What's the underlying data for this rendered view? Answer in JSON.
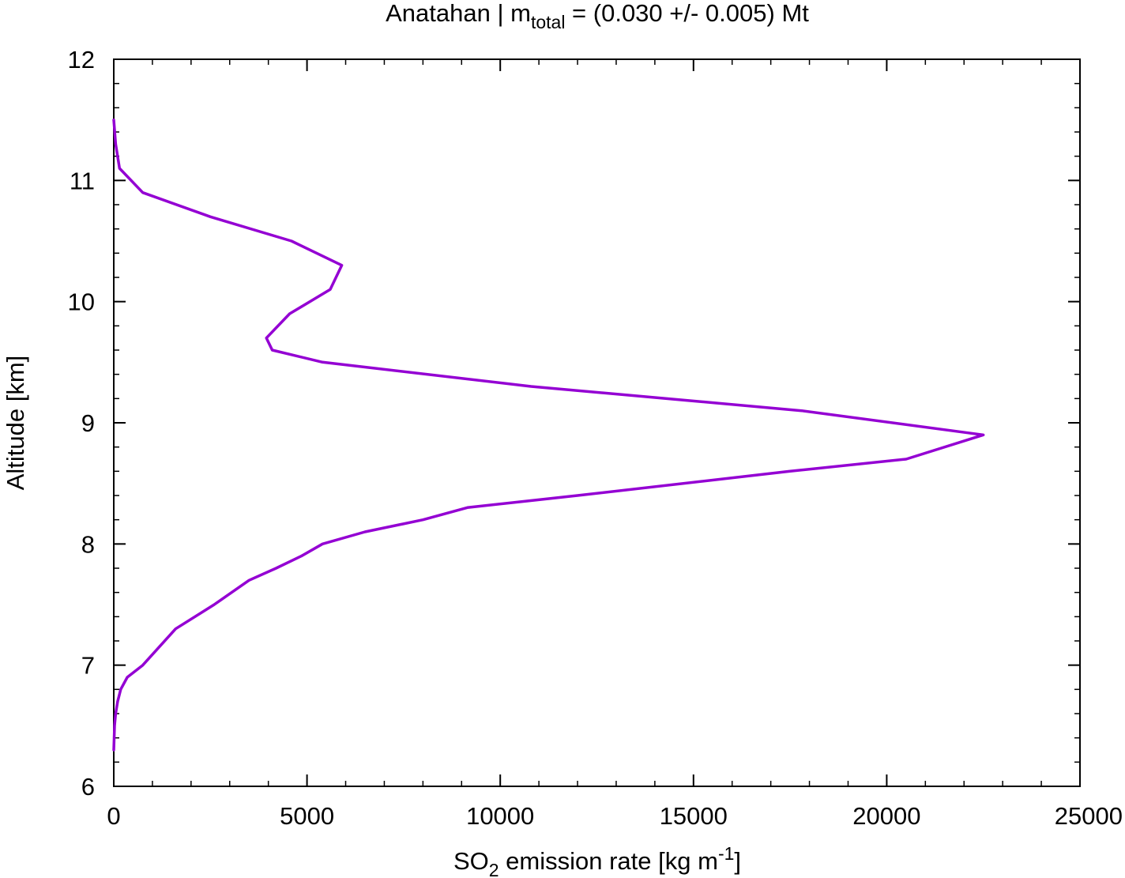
{
  "chart_data": {
    "type": "line",
    "title": {
      "prefix": "Anatahan | m",
      "subscript": "total",
      "suffix": " = (0.030 +/- 0.005) Mt"
    },
    "xlabel": {
      "prefix": "SO",
      "subscript": "2",
      "middle": " emission rate [kg m",
      "superscript": "-1",
      "suffix": "]"
    },
    "ylabel": "Altitude [km]",
    "xlim": [
      0,
      25000
    ],
    "ylim": [
      6,
      12
    ],
    "x_ticks": [
      0,
      5000,
      10000,
      15000,
      20000,
      25000
    ],
    "x_tick_labels": [
      "0",
      "5000",
      "10000",
      "15000",
      "20000",
      "25000"
    ],
    "y_ticks": [
      6,
      7,
      8,
      9,
      10,
      11,
      12
    ],
    "y_tick_labels": [
      "6",
      "7",
      "8",
      "9",
      "10",
      "11",
      "12"
    ],
    "x_minor_step": 1000,
    "y_minor_step": 0.2,
    "grid": false,
    "line_color": "#9400d3",
    "series": [
      {
        "x": [
          0,
          20,
          50,
          100,
          180,
          350,
          750,
          1600,
          2600,
          3500,
          4200,
          4850,
          5400,
          6500,
          8000,
          9150,
          12000,
          17500,
          20500,
          22500,
          17800,
          10800,
          5400,
          4100,
          3950,
          4550,
          5600,
          5900,
          4600,
          2500,
          750,
          150,
          50,
          0
        ],
        "y": [
          6.3,
          6.5,
          6.6,
          6.7,
          6.8,
          6.9,
          7.0,
          7.3,
          7.5,
          7.7,
          7.8,
          7.9,
          8.0,
          8.1,
          8.2,
          8.3,
          8.4,
          8.6,
          8.7,
          8.9,
          9.1,
          9.3,
          9.5,
          9.6,
          9.7,
          9.9,
          10.1,
          10.3,
          10.5,
          10.7,
          10.9,
          11.1,
          11.3,
          11.5
        ]
      }
    ]
  }
}
